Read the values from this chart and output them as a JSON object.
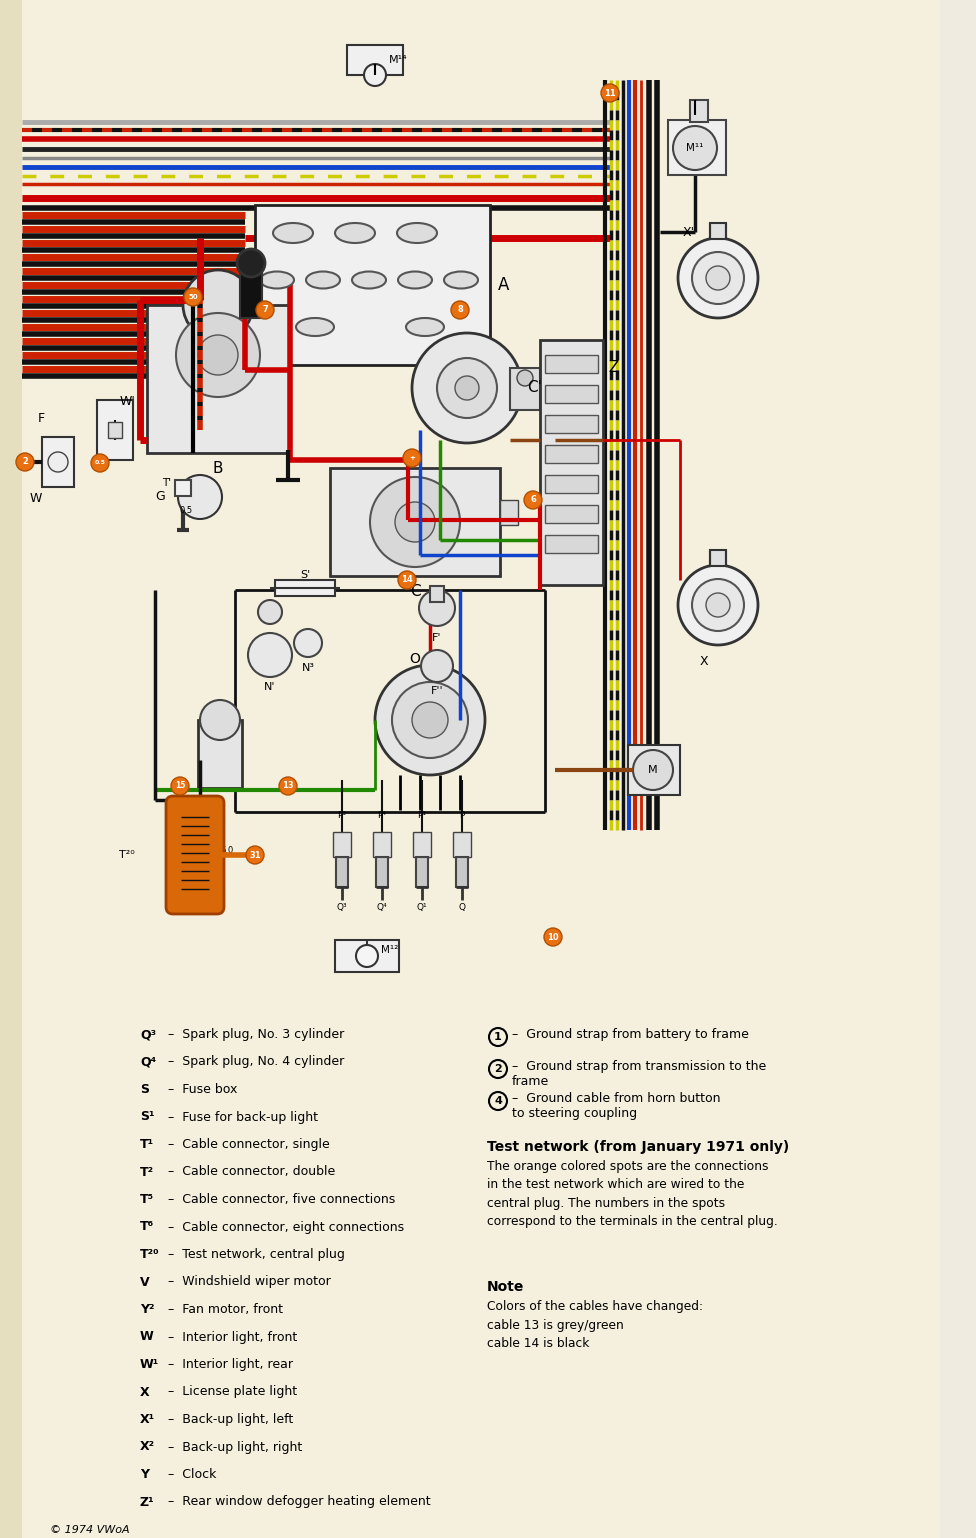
{
  "bg_color": "#f5f0de",
  "page_bg": "#f0ebe0",
  "legend_left": [
    [
      "Q³",
      "Spark plug, No. 3 cylinder"
    ],
    [
      "Q⁴",
      "Spark plug, No. 4 cylinder"
    ],
    [
      "S",
      "Fuse box"
    ],
    [
      "S¹",
      "Fuse for back-up light"
    ],
    [
      "T¹",
      "Cable connector, single"
    ],
    [
      "T²",
      "Cable connector, double"
    ],
    [
      "T⁵",
      "Cable connector, five connections"
    ],
    [
      "T⁶",
      "Cable connector, eight connections"
    ],
    [
      "T²⁰",
      "Test network, central plug"
    ],
    [
      "V",
      "Windshield wiper motor"
    ],
    [
      "Y²",
      "Fan motor, front"
    ],
    [
      "W",
      "Interior light, front"
    ],
    [
      "W¹",
      "Interior light, rear"
    ],
    [
      "X",
      "License plate light"
    ],
    [
      "X¹",
      "Back-up light, left"
    ],
    [
      "X²",
      "Back-up light, right"
    ],
    [
      "Y",
      "Clock"
    ],
    [
      "Z¹",
      "Rear window defogger heating element"
    ]
  ],
  "legend_right_items": [
    [
      "1",
      "Ground strap from battery to frame"
    ],
    [
      "2",
      "Ground strap from transmission to the\nframe"
    ],
    [
      "4",
      "Ground cable from horn button\nto steering coupling"
    ]
  ],
  "test_network_title": "Test network (from January 1971 only)",
  "test_network_text": "The orange colored spots are the connections\nin the test network which are wired to the\ncentral plug. The numbers in the spots\ncorrespond to the terminals in the central plug.",
  "note_title": "Note",
  "note_text": "Colors of the cables have changed:\ncable 13 is grey/green\ncable 14 is black",
  "copyright": "© 1974 VWoA"
}
